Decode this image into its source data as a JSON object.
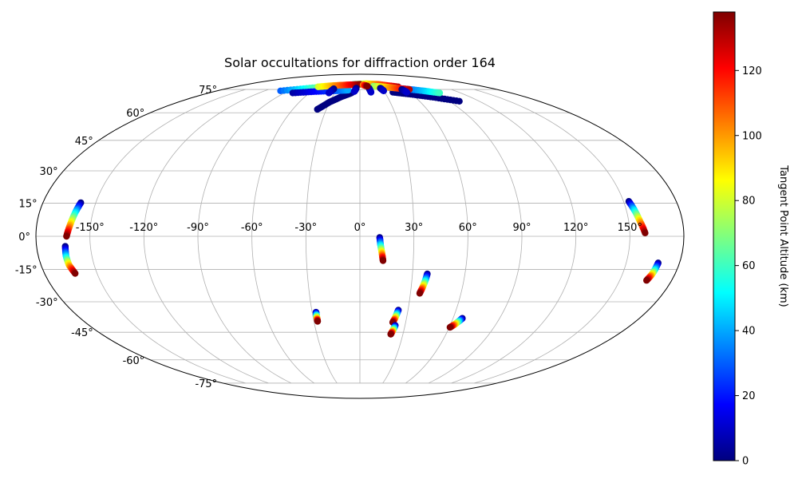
{
  "chart_data": {
    "type": "scatter",
    "projection": "mollweide",
    "title": "Solar occultations for diffraction order 164",
    "grid": true,
    "lon_ticks": [
      "-150°",
      "-120°",
      "-90°",
      "-60°",
      "-30°",
      "0°",
      "30°",
      "60°",
      "90°",
      "120°",
      "150°"
    ],
    "lon_tick_values": [
      -150,
      -120,
      -90,
      -60,
      -30,
      0,
      30,
      60,
      90,
      120,
      150
    ],
    "lat_ticks": [
      "-75°",
      "-60°",
      "-45°",
      "-30°",
      "-15°",
      "0°",
      "15°",
      "30°",
      "45°",
      "60°",
      "75°"
    ],
    "lat_tick_values": [
      -75,
      -60,
      -45,
      -30,
      -15,
      0,
      15,
      30,
      45,
      60,
      75
    ],
    "colorbar": {
      "label": "Tangent Point Altitude (km)",
      "range": [
        0,
        138
      ],
      "ticks": [
        0,
        20,
        40,
        60,
        80,
        100,
        120
      ],
      "colormap": "jet"
    },
    "tracks": [
      {
        "lon": [
          -158.5,
          -159.8,
          -161.3,
          -163.0
        ],
        "lat": [
          15.2,
          11.0,
          5.5,
          0.0
        ],
        "alt": [
          0,
          138
        ]
      },
      {
        "lon": [
          -164.0,
          -164.5,
          -164.2,
          -162.5
        ],
        "lat": [
          -4.5,
          -9.0,
          -13.0,
          -16.8
        ],
        "alt": [
          0,
          138
        ]
      },
      {
        "lon": [
          153.0,
          154.5,
          156.2,
          158.5
        ],
        "lat": [
          15.8,
          12.0,
          7.0,
          1.5
        ],
        "alt": [
          0,
          138
        ]
      },
      {
        "lon": [
          168.0,
          167.5,
          166.8,
          165.5
        ],
        "lat": [
          -12.0,
          -15.0,
          -17.5,
          -20.0
        ],
        "alt": [
          0,
          138
        ]
      },
      {
        "lon": [
          11.0,
          11.5,
          12.3,
          13.0
        ],
        "lat": [
          -0.5,
          -4.0,
          -7.5,
          -11.0
        ],
        "alt": [
          0,
          138
        ]
      },
      {
        "lon": [
          38.5,
          37.8,
          36.8,
          35.5
        ],
        "lat": [
          -17.0,
          -20.0,
          -23.0,
          -26.0
        ],
        "alt": [
          0,
          138
        ]
      },
      {
        "lon": [
          -27.6,
          -27.6,
          -27.6,
          -27.6
        ],
        "lat": [
          -35.0,
          -36.5,
          -38.0,
          -39.5
        ],
        "alt": [
          0,
          138
        ]
      },
      {
        "lon": [
          24.0,
          23.3,
          22.6,
          21.5
        ],
        "lat": [
          -34.0,
          -36.0,
          -38.0,
          -40.0
        ],
        "alt": [
          0,
          138
        ]
      },
      {
        "lon": [
          23.5,
          23.0,
          22.3,
          21.5
        ],
        "lat": [
          -41.5,
          -43.0,
          -44.5,
          -46.0
        ],
        "alt": [
          0,
          138
        ]
      },
      {
        "lon": [
          66.0,
          64.5,
          62.8,
          60.5
        ],
        "lat": [
          -38.0,
          -39.5,
          -41.0,
          -42.5
        ],
        "alt": [
          0,
          138
        ]
      },
      {
        "lon": [
          -10.0,
          -20.0,
          -30.0,
          -38.0
        ],
        "lat": [
          72.5,
          70.0,
          66.5,
          62.0
        ],
        "alt": [
          0,
          0
        ]
      },
      {
        "lon": [
          40.0,
          60.0,
          80.0,
          100.0
        ],
        "lat": [
          73.0,
          71.5,
          69.5,
          67.0
        ],
        "alt": [
          0,
          0
        ]
      },
      {
        "lon": [
          -100.0,
          -70.0,
          -40.0,
          -20.0
        ],
        "lat": [
          74.0,
          76.0,
          77.5,
          78.5
        ],
        "alt": [
          30,
          110
        ]
      },
      {
        "lon": [
          -80.0,
          -55.0,
          -30.0,
          -15.0
        ],
        "lat": [
          72.5,
          73.5,
          74.0,
          74.5
        ],
        "alt": [
          5,
          40
        ]
      },
      {
        "lon": [
          -10.0,
          10.0,
          30.0,
          55.0
        ],
        "lat": [
          79.0,
          79.5,
          79.0,
          77.0
        ],
        "alt": [
          60,
          130
        ]
      },
      {
        "lon": [
          40.0,
          60.0,
          80.0,
          95.0
        ],
        "lat": [
          76.5,
          75.5,
          74.0,
          72.5
        ],
        "alt": [
          10,
          60
        ]
      },
      {
        "lon": [
          -60.0,
          -40.0,
          -20.0,
          0.0
        ],
        "lat": [
          77.0,
          78.0,
          78.5,
          79.0
        ],
        "alt": [
          80,
          135
        ]
      },
      {
        "lon": [
          20.0,
          35.0,
          50.0,
          65.0
        ],
        "lat": [
          77.5,
          77.0,
          76.0,
          75.0
        ],
        "alt": [
          70,
          130
        ]
      },
      {
        "lon": [
          -5.0,
          -6.0,
          -7.0
        ],
        "lat": [
          76.0,
          74.5,
          73.5
        ],
        "alt": [
          0,
          10
        ]
      },
      {
        "lon": [
          12.5,
          13.0,
          13.5
        ],
        "lat": [
          76.0,
          74.5,
          73.0
        ],
        "alt": [
          0,
          10
        ]
      },
      {
        "lon": [
          28.0,
          29.0,
          30.0
        ],
        "lat": [
          76.0,
          75.0,
          74.0
        ],
        "alt": [
          0,
          10
        ]
      },
      {
        "lon": [
          -35.0,
          -36.0,
          -37.0
        ],
        "lat": [
          75.5,
          74.0,
          72.5
        ],
        "alt": [
          0,
          10
        ]
      },
      {
        "lon": [
          55.0,
          56.0,
          57.0
        ],
        "lat": [
          75.0,
          74.0,
          73.0
        ],
        "alt": [
          0,
          10
        ]
      },
      {
        "lon": [
          5.0,
          8.0,
          11.0
        ],
        "lat": [
          78.5,
          78.0,
          77.5
        ],
        "alt": [
          100,
          138
        ]
      }
    ]
  }
}
